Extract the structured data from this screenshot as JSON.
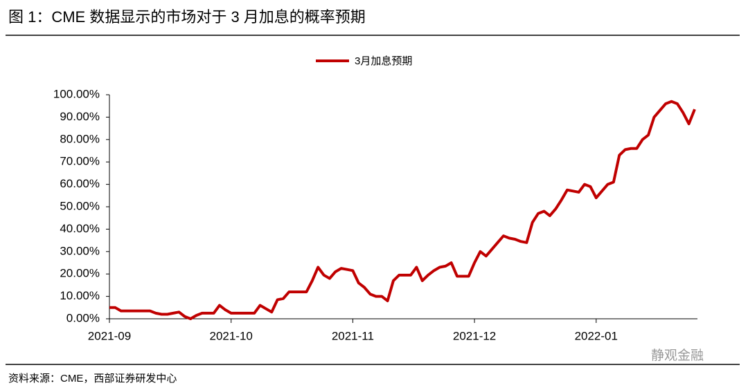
{
  "chart_data": {
    "type": "line",
    "title": "图 1：CME 数据显示的市场对于 3 月加息的概率预期",
    "source": "资料来源：CME，西部证券研发中心",
    "watermark": "静观金融",
    "categories": [
      "2021-09",
      null,
      null,
      null,
      null,
      null,
      null,
      null,
      null,
      null,
      null,
      null,
      null,
      null,
      null,
      null,
      null,
      null,
      null,
      null,
      null,
      "2021-10",
      null,
      null,
      null,
      null,
      null,
      null,
      null,
      null,
      null,
      null,
      null,
      null,
      null,
      null,
      null,
      null,
      null,
      null,
      null,
      null,
      "2021-11",
      null,
      null,
      null,
      null,
      null,
      null,
      null,
      null,
      null,
      null,
      null,
      null,
      null,
      null,
      null,
      null,
      null,
      null,
      null,
      null,
      "2021-12",
      null,
      null,
      null,
      null,
      null,
      null,
      null,
      null,
      null,
      null,
      null,
      null,
      null,
      null,
      null,
      null,
      null,
      null,
      null,
      null,
      "2022-01",
      null,
      null,
      null,
      null,
      null,
      null,
      null,
      null,
      null,
      null,
      null,
      null,
      null,
      null,
      null,
      null,
      null
    ],
    "series": [
      {
        "name": "3月加息预期",
        "color": "#c00000",
        "values": [
          5,
          5,
          3.5,
          3.5,
          3.5,
          3.5,
          3.5,
          3.5,
          2.5,
          2,
          2,
          2.5,
          3,
          1,
          0,
          1.5,
          2.5,
          2.5,
          2.5,
          6,
          4,
          2.5,
          2.5,
          2.5,
          2.5,
          2.5,
          6,
          4.5,
          3,
          8.5,
          9,
          12,
          12,
          12,
          12,
          17,
          23,
          19.5,
          18,
          21,
          22.5,
          22,
          21.5,
          16,
          14,
          11,
          10,
          10,
          8,
          17,
          19.5,
          19.5,
          19.5,
          23,
          17,
          19.5,
          21.5,
          23,
          23.5,
          25,
          19,
          19,
          19,
          25,
          30,
          28,
          31,
          34,
          37,
          36,
          35.5,
          34.5,
          34,
          43,
          47,
          48,
          46,
          49,
          53,
          57.5,
          57,
          56.5,
          60,
          59,
          54,
          57,
          60,
          61,
          73,
          75.5,
          76,
          76,
          80,
          82,
          90,
          93,
          96,
          97,
          96,
          92,
          87,
          93.5
        ]
      }
    ],
    "ylim": [
      0,
      100
    ],
    "yticks": [
      {
        "value": 0,
        "label": "0.00%"
      },
      {
        "value": 10,
        "label": "10.00%"
      },
      {
        "value": 20,
        "label": "20.00%"
      },
      {
        "value": 30,
        "label": "30.00%"
      },
      {
        "value": 40,
        "label": "40.00%"
      },
      {
        "value": 50,
        "label": "50.00%"
      },
      {
        "value": 60,
        "label": "60.00%"
      },
      {
        "value": 70,
        "label": "70.00%"
      },
      {
        "value": 80,
        "label": "80.00%"
      },
      {
        "value": 90,
        "label": "90.00%"
      },
      {
        "value": 100,
        "label": "100.00%"
      }
    ],
    "grid": false
  }
}
